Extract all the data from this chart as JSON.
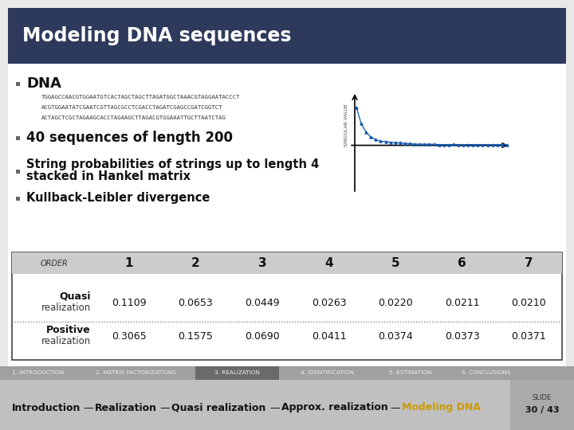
{
  "title": "Modeling DNA sequences",
  "title_color": "#FFFFFF",
  "header_bg": "#2E3A5C",
  "slide_bg": "#E8E8E8",
  "bullet1": "DNA",
  "dna_lines": [
    "TGGAGCCAACGTGGAATGTCACTAGCTAGCTTAGATGGCTAAACGTAGGAATACCCT",
    "ACGTGGAATATCGAATCGTTAGCGCCTCGACCTAGATCGAGCCGATCGGTCT",
    "ACTAGCTCGCTAGAAGCACCTAGAAGCTTAGACGTGGAAATTGCTTAATCTAG"
  ],
  "bullet2": "40 sequences of length 200",
  "bullet3_line1": "String probabilities of strings up to length 4",
  "bullet3_line2": "stacked in Hankel matrix",
  "bullet4": "Kullback-Leibler divergence",
  "table_header": [
    "ORDER",
    "1",
    "2",
    "3",
    "4",
    "5",
    "6",
    "7"
  ],
  "table_row1_label1": "Quasi",
  "table_row1_label2": "realization",
  "table_row1_vals": [
    "0.1109",
    "0.0653",
    "0.0449",
    "0.0263",
    "0.0220",
    "0.0211",
    "0.0210"
  ],
  "table_row2_label1": "Positive",
  "table_row2_label2": "realization",
  "table_row2_vals": [
    "0.3065",
    "0.1575",
    "0.0690",
    "0.0411",
    "0.0374",
    "0.0373",
    "0.0371"
  ],
  "footer_items": [
    "1. INTRODUCTION",
    "2. MATRIX FACTORIZATIONS",
    "3. REALIZATION",
    "4. IDENTIFICATION",
    "5. ESTIMATION",
    "6. CONCLUSIONS"
  ],
  "footer_active": "3. REALIZATION",
  "footer_widths": [
    95,
    150,
    105,
    120,
    90,
    100
  ],
  "nav_items": [
    "Introduction",
    "Realization",
    "Quasi realization",
    "Approx. realization",
    "Modeling DNA"
  ],
  "nav_active": "Modeling DNA",
  "nav_active_color": "#CC9900",
  "slide_label": "SLIDE",
  "slide_num": "30 / 43"
}
